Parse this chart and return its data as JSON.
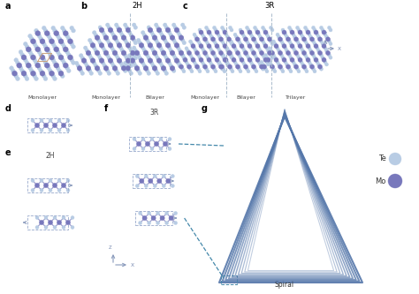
{
  "bg_color": "#ffffff",
  "te_color": "#b8cce4",
  "mo_color": "#7878bc",
  "bond_color": "#9999cc",
  "dashed_color": "#4488aa",
  "arrow_color": "#8899bb",
  "box_color": "#99aacc",
  "diamond_color": "#c8a07a",
  "label_a": "a",
  "label_b": "b",
  "label_c": "c",
  "label_d": "d",
  "label_e": "e",
  "label_f": "f",
  "label_g": "g",
  "title_2H": "2H",
  "title_3R": "3R",
  "label_monolayer": "Monolayer",
  "label_bilayer": "Bilayer",
  "label_trilayer": "Trilayer",
  "label_2H_e": "2H",
  "label_3R_f": "3R",
  "label_spiral": "Spiral",
  "label_Te": "Te",
  "label_Mo": "Mo"
}
